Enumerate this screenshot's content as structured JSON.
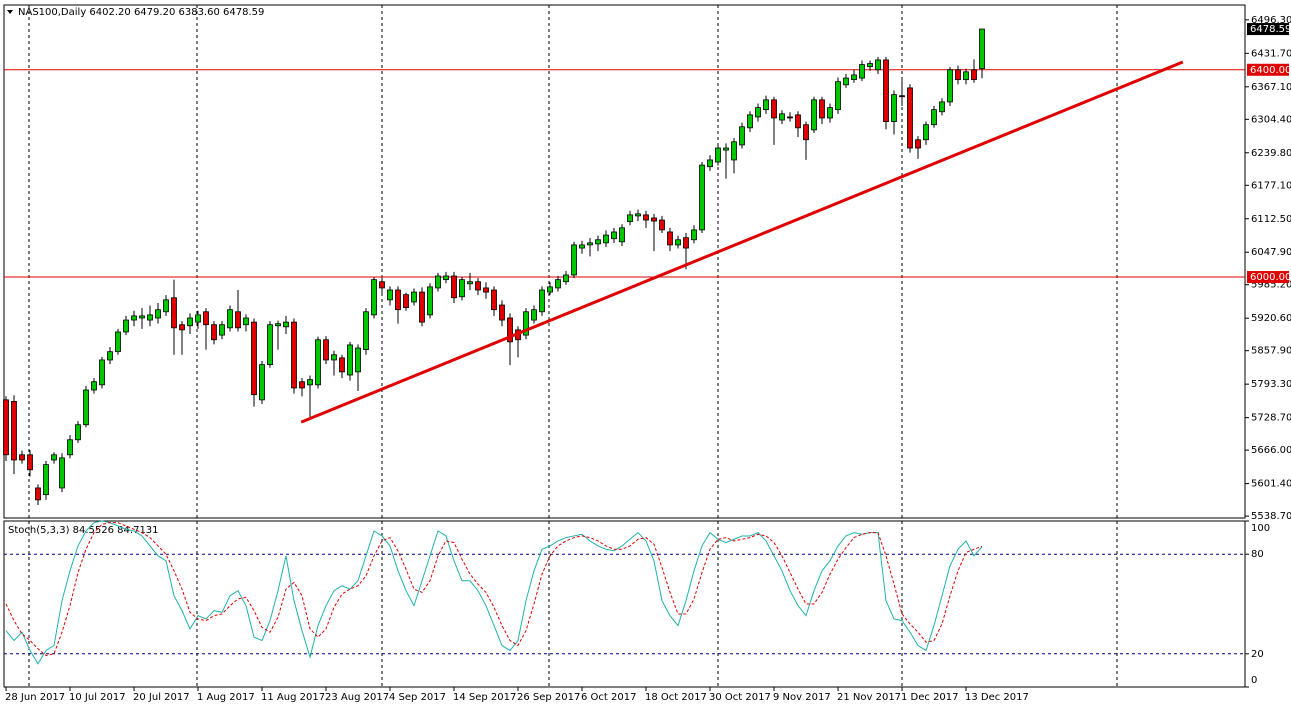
{
  "chart_data": {
    "type": "candlestick",
    "title": "NAS100,Daily  6402.20 6479.20 6383.60 6478.59",
    "categories": [
      "28 Jun 2017",
      null,
      null,
      null,
      null,
      null,
      null,
      null,
      "10 Jul 2017",
      null,
      null,
      null,
      null,
      null,
      null,
      null,
      "20 Jul 2017",
      null,
      null,
      null,
      null,
      null,
      null,
      null,
      "1 Aug 2017",
      null,
      null,
      null,
      null,
      null,
      null,
      null,
      "11 Aug 2017",
      null,
      null,
      null,
      null,
      null,
      null,
      null,
      "23 Aug 2017",
      null,
      null,
      null,
      null,
      null,
      null,
      null,
      "4 Sep 2017",
      null,
      null,
      null,
      null,
      null,
      null,
      null,
      "14 Sep 2017",
      null,
      null,
      null,
      null,
      null,
      null,
      null,
      "26 Sep 2017",
      null,
      null,
      null,
      null,
      null,
      null,
      null,
      "6 Oct 2017",
      null,
      null,
      null,
      null,
      null,
      null,
      null,
      "18 Oct 2017",
      null,
      null,
      null,
      null,
      null,
      null,
      null,
      "30 Oct 2017",
      null,
      null,
      null,
      null,
      null,
      null,
      null,
      "9 Nov 2017",
      null,
      null,
      null,
      null,
      null,
      null,
      null,
      "21 Nov 2017",
      null,
      null,
      null,
      null,
      null,
      null,
      null,
      "1 Dec 2017",
      null,
      null,
      null,
      null,
      null,
      null,
      null,
      "13 Dec 2017",
      null,
      null
    ],
    "ohlc": [
      [
        5763,
        5770,
        5645,
        5657
      ],
      [
        5760,
        5772,
        5620,
        5647
      ],
      [
        5657,
        5665,
        5640,
        5647
      ],
      [
        5657,
        5666,
        5615,
        5628
      ],
      [
        5593,
        5600,
        5560,
        5570
      ],
      [
        5580,
        5645,
        5570,
        5638
      ],
      [
        5647,
        5662,
        5640,
        5657
      ],
      [
        5593,
        5660,
        5585,
        5651
      ],
      [
        5657,
        5695,
        5650,
        5686
      ],
      [
        5686,
        5722,
        5680,
        5715
      ],
      [
        5715,
        5790,
        5710,
        5782
      ],
      [
        5782,
        5805,
        5775,
        5798
      ],
      [
        5792,
        5846,
        5785,
        5840
      ],
      [
        5840,
        5865,
        5832,
        5856
      ],
      [
        5856,
        5900,
        5850,
        5894
      ],
      [
        5894,
        5925,
        5888,
        5917
      ],
      [
        5917,
        5935,
        5905,
        5925
      ],
      [
        5921,
        5940,
        5900,
        5925
      ],
      [
        5917,
        5945,
        5905,
        5927
      ],
      [
        5921,
        5950,
        5910,
        5937
      ],
      [
        5933,
        5965,
        5925,
        5956
      ],
      [
        5960,
        5995,
        5850,
        5902
      ],
      [
        5908,
        5915,
        5850,
        5898
      ],
      [
        5906,
        5930,
        5890,
        5921
      ],
      [
        5913,
        5935,
        5900,
        5927
      ],
      [
        5933,
        5940,
        5860,
        5908
      ],
      [
        5908,
        5915,
        5870,
        5879
      ],
      [
        5888,
        5915,
        5880,
        5908
      ],
      [
        5902,
        5945,
        5895,
        5937
      ],
      [
        5933,
        5975,
        5895,
        5902
      ],
      [
        5908,
        5928,
        5895,
        5921
      ],
      [
        5913,
        5920,
        5750,
        5773
      ],
      [
        5763,
        5838,
        5755,
        5831
      ],
      [
        5831,
        5915,
        5825,
        5908
      ],
      [
        5906,
        5916,
        5860,
        5910
      ],
      [
        5904,
        5925,
        5890,
        5913
      ],
      [
        5913,
        5920,
        5775,
        5786
      ],
      [
        5798,
        5805,
        5770,
        5786
      ],
      [
        5792,
        5810,
        5730,
        5802
      ],
      [
        5792,
        5885,
        5785,
        5879
      ],
      [
        5879,
        5886,
        5832,
        5840
      ],
      [
        5840,
        5858,
        5810,
        5850
      ],
      [
        5844,
        5850,
        5805,
        5817
      ],
      [
        5811,
        5875,
        5800,
        5869
      ],
      [
        5817,
        5870,
        5780,
        5863
      ],
      [
        5860,
        5940,
        5850,
        5933
      ],
      [
        5927,
        6000,
        5920,
        5995
      ],
      [
        5991,
        5998,
        5965,
        5979
      ],
      [
        5956,
        5982,
        5945,
        5975
      ],
      [
        5975,
        5982,
        5910,
        5937
      ],
      [
        5966,
        5970,
        5935,
        5941
      ],
      [
        5952,
        5978,
        5945,
        5971
      ],
      [
        5971,
        5980,
        5905,
        5913
      ],
      [
        5927,
        5988,
        5920,
        5981
      ],
      [
        5979,
        6008,
        5972,
        6002
      ],
      [
        5995,
        6010,
        5988,
        6002
      ],
      [
        6002,
        6010,
        5950,
        5960
      ],
      [
        5962,
        6000,
        5955,
        5995
      ],
      [
        5987,
        6008,
        5975,
        5991
      ],
      [
        5991,
        5998,
        5965,
        5975
      ],
      [
        5979,
        5990,
        5958,
        5971
      ],
      [
        5975,
        5982,
        5925,
        5937
      ],
      [
        5946,
        5955,
        5905,
        5917
      ],
      [
        5921,
        5930,
        5830,
        5875
      ],
      [
        5898,
        5905,
        5845,
        5879
      ],
      [
        5888,
        5940,
        5880,
        5933
      ],
      [
        5917,
        5945,
        5910,
        5937
      ],
      [
        5933,
        5982,
        5925,
        5975
      ],
      [
        5971,
        5990,
        5965,
        5981
      ],
      [
        5979,
        6002,
        5972,
        5995
      ],
      [
        5991,
        6012,
        5985,
        6004
      ],
      [
        6004,
        6068,
        5998,
        6062
      ],
      [
        6056,
        6070,
        6045,
        6062
      ],
      [
        6062,
        6075,
        6040,
        6066
      ],
      [
        6064,
        6080,
        6050,
        6072
      ],
      [
        6066,
        6090,
        6058,
        6081
      ],
      [
        6074,
        6095,
        6066,
        6087
      ],
      [
        6068,
        6102,
        6060,
        6095
      ],
      [
        6107,
        6128,
        6100,
        6120
      ],
      [
        6118,
        6130,
        6108,
        6122
      ],
      [
        6120,
        6128,
        6095,
        6110
      ],
      [
        6114,
        6122,
        6050,
        6108
      ],
      [
        6110,
        6118,
        6085,
        6091
      ],
      [
        6087,
        6095,
        6050,
        6062
      ],
      [
        6062,
        6080,
        6055,
        6072
      ],
      [
        6076,
        6085,
        6015,
        6056
      ],
      [
        6072,
        6100,
        6065,
        6091
      ],
      [
        6091,
        6222,
        6085,
        6216
      ],
      [
        6213,
        6235,
        6205,
        6226
      ],
      [
        6222,
        6255,
        6215,
        6249
      ],
      [
        6245,
        6258,
        6190,
        6249
      ],
      [
        6226,
        6268,
        6200,
        6261
      ],
      [
        6255,
        6298,
        6248,
        6290
      ],
      [
        6288,
        6320,
        6280,
        6313
      ],
      [
        6309,
        6335,
        6300,
        6327
      ],
      [
        6323,
        6350,
        6315,
        6342
      ],
      [
        6342,
        6348,
        6255,
        6307
      ],
      [
        6303,
        6322,
        6295,
        6315
      ],
      [
        6309,
        6318,
        6300,
        6307
      ],
      [
        6313,
        6320,
        6270,
        6288
      ],
      [
        6294,
        6300,
        6226,
        6265
      ],
      [
        6284,
        6348,
        6278,
        6342
      ],
      [
        6342,
        6348,
        6295,
        6307
      ],
      [
        6307,
        6335,
        6298,
        6327
      ],
      [
        6323,
        6385,
        6315,
        6377
      ],
      [
        6371,
        6392,
        6365,
        6384
      ],
      [
        6381,
        6400,
        6375,
        6390
      ],
      [
        6384,
        6418,
        6378,
        6410
      ],
      [
        6406,
        6418,
        6398,
        6412
      ],
      [
        6400,
        6425,
        6392,
        6419
      ],
      [
        6419,
        6425,
        6285,
        6300
      ],
      [
        6300,
        6360,
        6275,
        6352
      ],
      [
        6350,
        6380,
        6330,
        6348
      ],
      [
        6365,
        6372,
        6240,
        6249
      ],
      [
        6265,
        6272,
        6228,
        6249
      ],
      [
        6265,
        6300,
        6255,
        6294
      ],
      [
        6294,
        6330,
        6288,
        6323
      ],
      [
        6319,
        6345,
        6312,
        6338
      ],
      [
        6338,
        6405,
        6330,
        6400
      ],
      [
        6400,
        6408,
        6372,
        6381
      ],
      [
        6381,
        6402,
        6372,
        6396
      ],
      [
        6400,
        6420,
        6375,
        6381
      ],
      [
        6402.2,
        6479.2,
        6383.6,
        6478.59
      ]
    ],
    "up_color": "#00c800",
    "down_color": "#e00000",
    "ylim": [
      5535,
      6525
    ],
    "yticks": [
      {
        "value": 6496.3,
        "label": "6496.30"
      },
      {
        "value": 6431.7,
        "label": "6431.70"
      },
      {
        "value": 6367.1,
        "label": "6367.10"
      },
      {
        "value": 6304.4,
        "label": "6304.40"
      },
      {
        "value": 6239.8,
        "label": "6239.80"
      },
      {
        "value": 6177.1,
        "label": "6177.10"
      },
      {
        "value": 6112.5,
        "label": "6112.50"
      },
      {
        "value": 6047.9,
        "label": "6047.90"
      },
      {
        "value": 5985.2,
        "label": "5985.20"
      },
      {
        "value": 5920.6,
        "label": "5920.60"
      },
      {
        "value": 5857.9,
        "label": "5857.90"
      },
      {
        "value": 5793.3,
        "label": "5793.30"
      },
      {
        "value": 5728.7,
        "label": "5728.70"
      },
      {
        "value": 5666,
        "label": "5666.00"
      },
      {
        "value": 5601.4,
        "label": "5601.40"
      },
      {
        "value": 5538.7,
        "label": "5538.70"
      }
    ],
    "hlines": [
      {
        "value": 6400,
        "label": "6400.00",
        "color": "#e00000"
      },
      {
        "value": 6000,
        "label": "6000.00",
        "color": "#e00000"
      }
    ],
    "trend_line": {
      "x": [
        36.9,
        147.1
      ],
      "y": [
        5720,
        6415
      ],
      "color": "#e00000"
    },
    "stochastic": {
      "title": "Stoch(5,3,3) 84.5526 84.7131",
      "ylim": [
        0,
        100
      ],
      "yticks": [
        100,
        80,
        20,
        0
      ],
      "levels": [
        80,
        20
      ],
      "main": {
        "color": "#20b2aa",
        "values": [
          34,
          28,
          33,
          22,
          14,
          22,
          25,
          52,
          70,
          85,
          94,
          99,
          100,
          99,
          97,
          95,
          94,
          91,
          85,
          79,
          76,
          55,
          46,
          35,
          43,
          41,
          46,
          45,
          55,
          58,
          49,
          30,
          28,
          40,
          58,
          79,
          52,
          34,
          18,
          37,
          49,
          58,
          61,
          59,
          64,
          79,
          94,
          91,
          85,
          70,
          58,
          49,
          64,
          79,
          94,
          91,
          76,
          64,
          64,
          58,
          49,
          37,
          25,
          22,
          28,
          52,
          70,
          83,
          85,
          88,
          90,
          91,
          92,
          88,
          85,
          83,
          82,
          85,
          89,
          93,
          88,
          76,
          52,
          43,
          37,
          52,
          70,
          85,
          93,
          89,
          87,
          89,
          91,
          91,
          93,
          88,
          79,
          70,
          58,
          49,
          43,
          58,
          70,
          76,
          85,
          91,
          93,
          92,
          93,
          93,
          52,
          41,
          40,
          33,
          25,
          22,
          37,
          55,
          73,
          83,
          88,
          79,
          84.5526
        ]
      },
      "signal": {
        "color": "#e00000",
        "values": [
          50,
          40,
          32,
          28,
          23,
          19,
          20,
          33,
          49,
          69,
          83,
          93,
          98,
          99,
          99,
          97,
          95,
          93,
          90,
          85,
          80,
          70,
          59,
          45,
          41,
          40,
          43,
          44,
          49,
          53,
          54,
          46,
          36,
          33,
          42,
          59,
          63,
          55,
          35,
          30,
          35,
          48,
          56,
          59,
          61,
          67,
          79,
          88,
          90,
          82,
          71,
          59,
          57,
          64,
          79,
          88,
          87,
          77,
          68,
          62,
          57,
          48,
          37,
          28,
          25,
          34,
          50,
          68,
          79,
          85,
          88,
          90,
          91,
          90,
          88,
          85,
          83,
          83,
          85,
          89,
          90,
          86,
          72,
          57,
          44,
          44,
          53,
          69,
          83,
          89,
          90,
          88,
          89,
          90,
          92,
          91,
          87,
          79,
          69,
          59,
          50,
          50,
          57,
          68,
          77,
          84,
          90,
          92,
          93,
          93,
          79,
          62,
          44,
          38,
          33,
          27,
          28,
          38,
          55,
          70,
          81,
          83,
          84.7131
        ]
      }
    }
  }
}
